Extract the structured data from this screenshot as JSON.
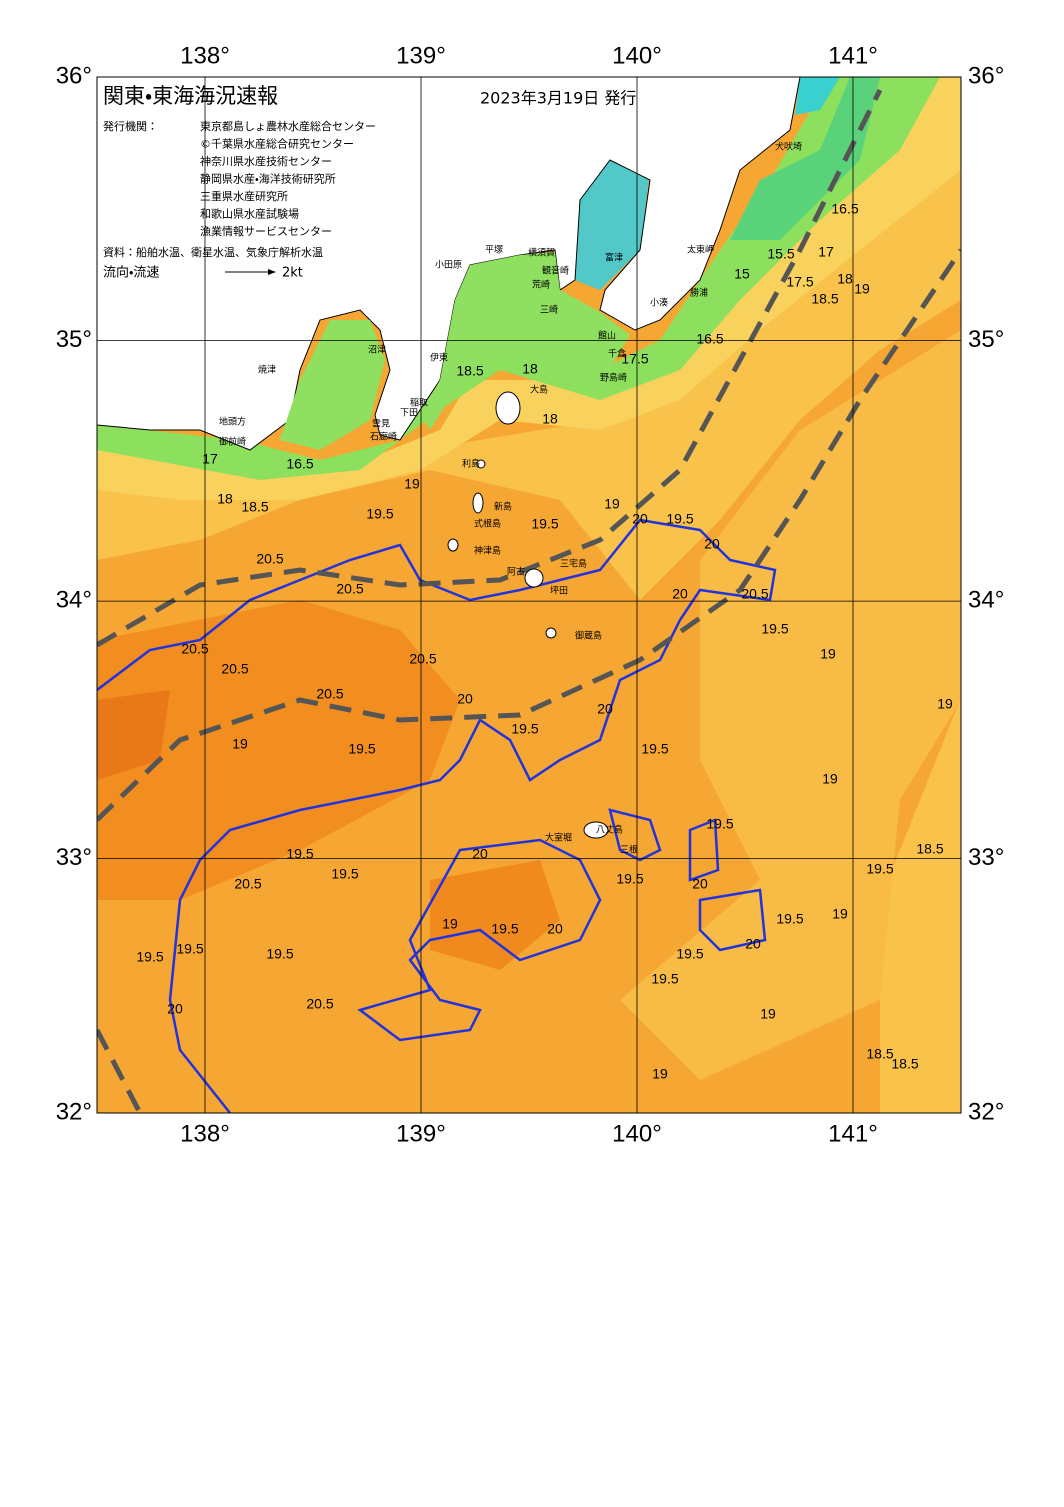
{
  "header": {
    "title": "関東・東海海況速報",
    "date": "2023年3月19日 発行",
    "issuers_label": "発行機関：",
    "issuers": [
      "東京都島しょ農林水産総合センター",
      "©千葉県水産総合研究センター",
      "神奈川県水産技術センター",
      "静岡県水産・海洋技術研究所",
      "三重県水産研究所",
      "和歌山県水産試験場",
      "漁業情報サービスセンター"
    ],
    "source": "資料：船舶水温、衛星水温、気象庁解析水温",
    "flow_label": "流向・流速",
    "flow_scale": "2kt"
  },
  "map": {
    "xlim": [
      137.5,
      141.5
    ],
    "ylim": [
      32,
      36
    ],
    "xticks": [
      {
        "value": 138,
        "label": "138°"
      },
      {
        "value": 139,
        "label": "139°"
      },
      {
        "value": 140,
        "label": "140°"
      },
      {
        "value": 141,
        "label": "141°"
      }
    ],
    "yticks": [
      {
        "value": 32,
        "label": "32°"
      },
      {
        "value": 33,
        "label": "33°"
      },
      {
        "value": 34,
        "label": "34°"
      },
      {
        "value": 35,
        "label": "35°"
      },
      {
        "value": 36,
        "label": "36°"
      }
    ],
    "grid": true
  },
  "places": [
    "犬吠埼",
    "太東岬",
    "勝浦",
    "小湊",
    "富津",
    "横須賀",
    "観音崎",
    "平塚",
    "小田原",
    "荒崎",
    "三崎",
    "館山",
    "千倉",
    "野島崎",
    "沼津",
    "伊東",
    "焼津",
    "稲取",
    "下田",
    "雲見",
    "石廊崎",
    "地頭方",
    "御前崎",
    "大島",
    "利島",
    "新島",
    "式根島",
    "神津島",
    "阿古",
    "三宅島",
    "坪田",
    "御蔵島",
    "八丈島",
    "三根",
    "大室堀"
  ],
  "contour_labels": [
    "15",
    "15.5",
    "16.5",
    "17",
    "17.5",
    "18",
    "18.5",
    "19",
    "16.5",
    "17.5",
    "18",
    "18.5",
    "18",
    "17",
    "16.5",
    "18",
    "18.5",
    "19",
    "19.5",
    "19",
    "19.5",
    "20",
    "19.5",
    "20",
    "20.5",
    "20.5",
    "20",
    "20.5",
    "20.5",
    "20.5",
    "20.5",
    "20.5",
    "20",
    "20",
    "19.5",
    "19.5",
    "19",
    "19",
    "19.5",
    "19",
    "19.5",
    "19",
    "18.5",
    "19.5",
    "19.5",
    "20",
    "19.5",
    "20.5",
    "20",
    "20",
    "19.5",
    "19.5",
    "19",
    "19.5",
    "18.5",
    "18.5",
    "19.5",
    "19.5",
    "19.5",
    "20.5",
    "20",
    "19",
    "19.5",
    "19.5",
    "19.5",
    "20",
    "19",
    "19"
  ]
}
